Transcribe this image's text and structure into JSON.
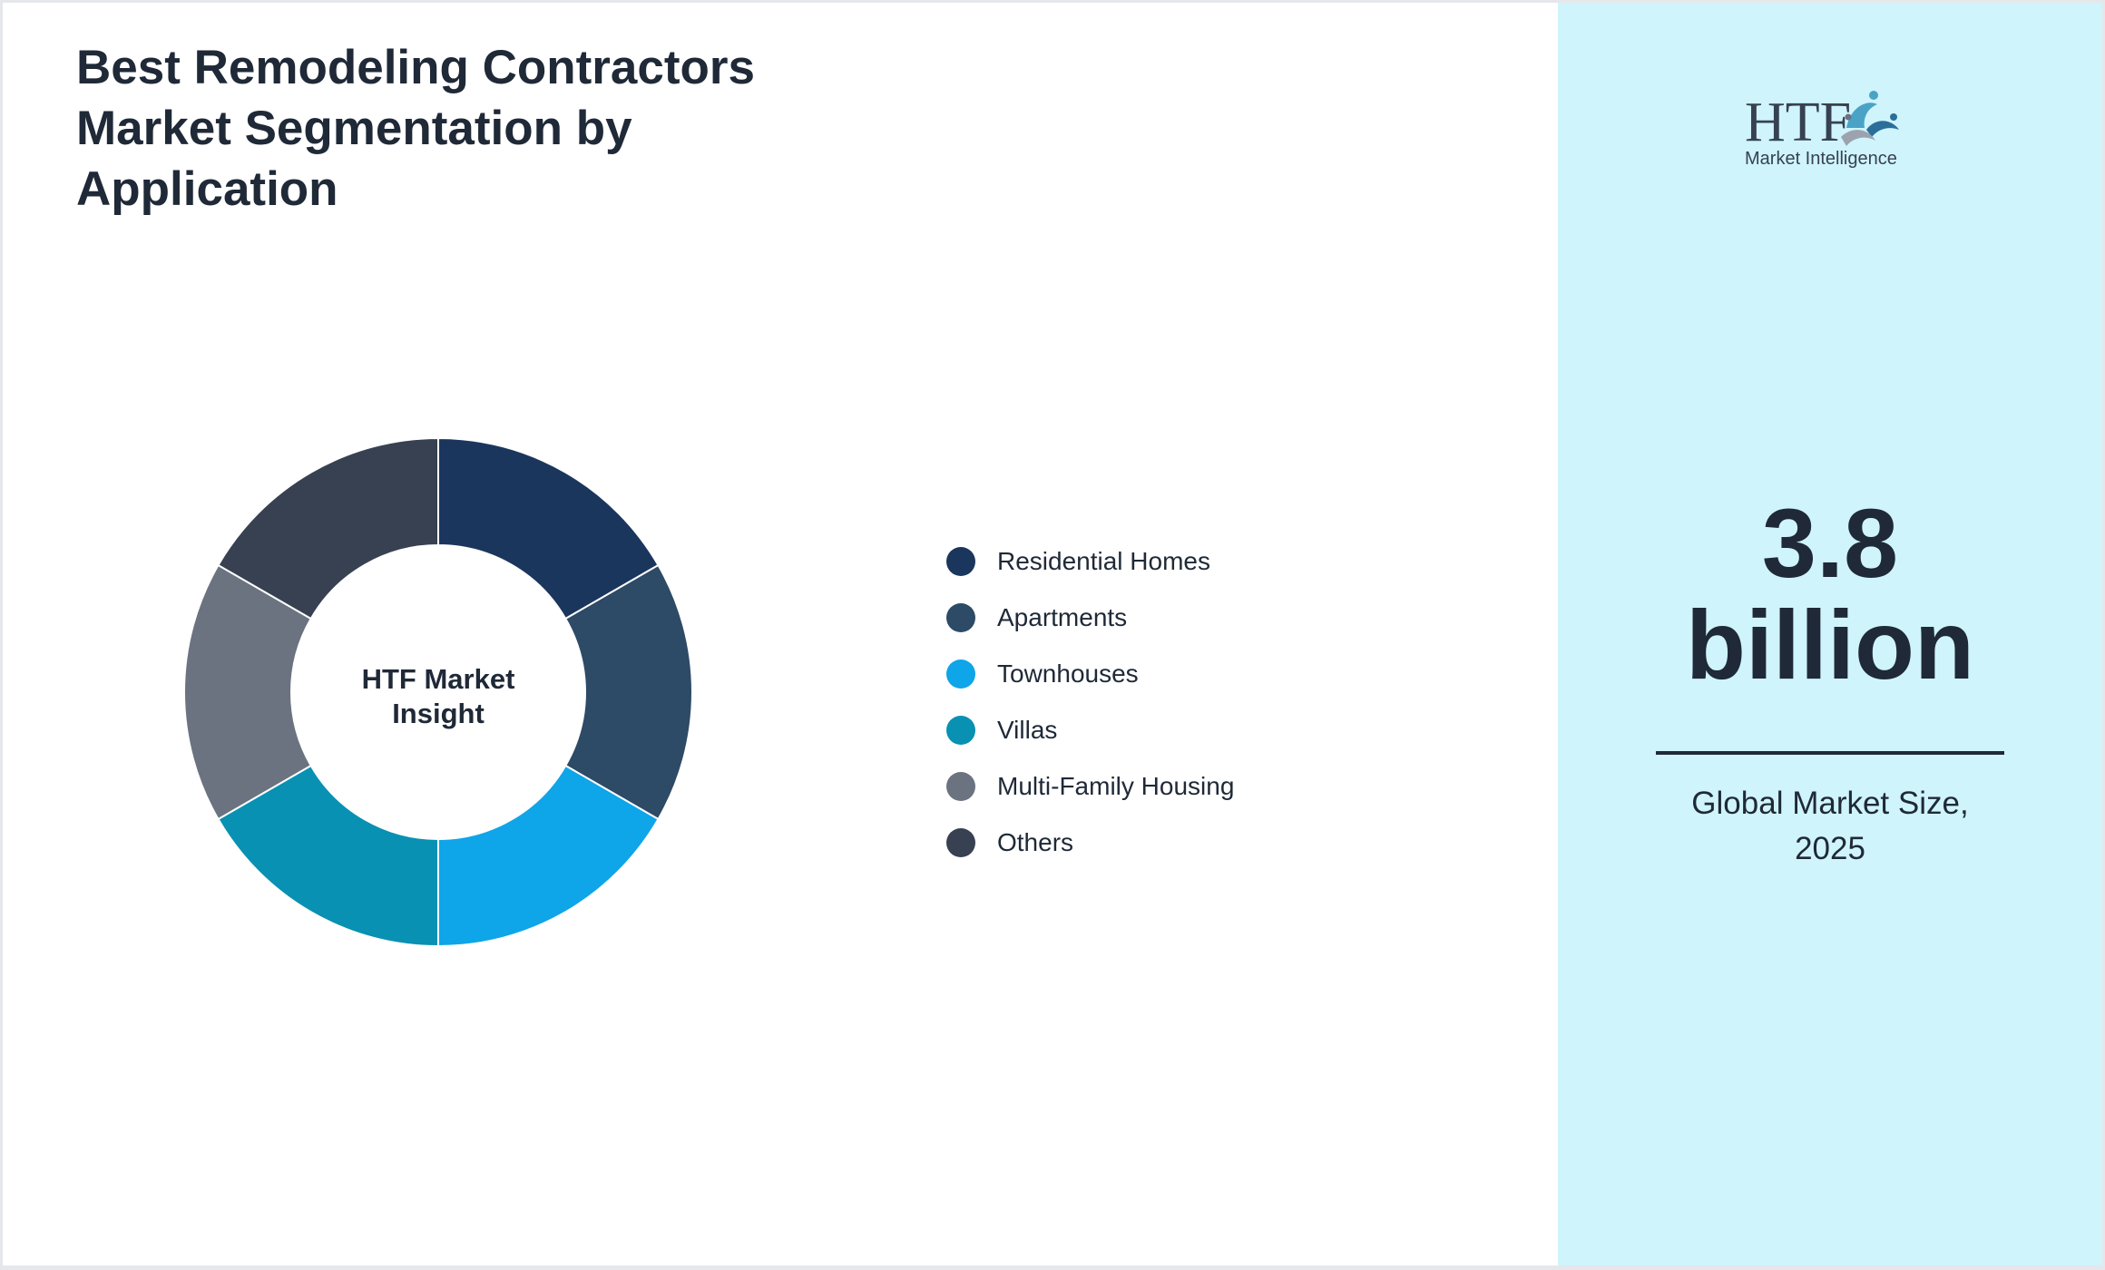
{
  "title": "Best Remodeling Contractors Market Segmentation by Application",
  "chart_data": {
    "type": "pie",
    "center_label": [
      "HTF Market",
      "Insight"
    ],
    "categories": [
      "Residential Homes",
      "Apartments",
      "Townhouses",
      "Villas",
      "Multi-Family Housing",
      "Others"
    ],
    "values": [
      16.67,
      16.67,
      16.67,
      16.67,
      16.67,
      16.67
    ],
    "colors": [
      "#1b365d",
      "#2d4a66",
      "#0ea5e9",
      "#0891b2",
      "#6b7280",
      "#374151"
    ],
    "donut": true,
    "legend_position": "right"
  },
  "legend": [
    {
      "label": "Residential Homes",
      "color": "#1b365d"
    },
    {
      "label": "Apartments",
      "color": "#2d4a66"
    },
    {
      "label": "Townhouses",
      "color": "#0ea5e9"
    },
    {
      "label": "Villas",
      "color": "#0891b2"
    },
    {
      "label": "Multi-Family Housing",
      "color": "#6b7280"
    },
    {
      "label": "Others",
      "color": "#374151"
    }
  ],
  "sidebar": {
    "logo_text": "HTF",
    "logo_subtext": "Market Intelligence",
    "value_line1": "3.8",
    "value_line2": "billion",
    "caption_line1": "Global Market Size,",
    "caption_line2": "2025",
    "background": "#cff4fc"
  }
}
